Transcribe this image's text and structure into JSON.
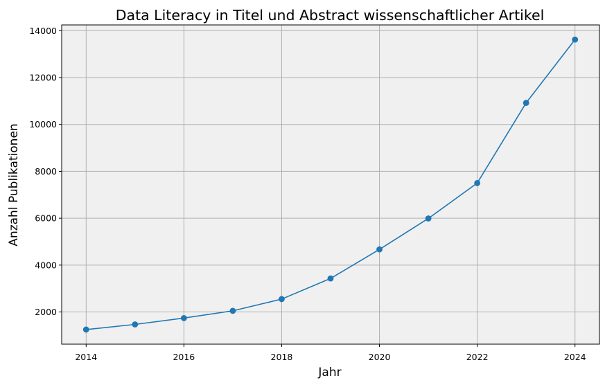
{
  "chart_data": {
    "type": "line",
    "title": "Data Literacy in Titel und Abstract wissenschaftlicher Artikel",
    "xlabel": "Jahr",
    "ylabel": "Anzahl Publikationen",
    "x": [
      2014,
      2015,
      2016,
      2017,
      2018,
      2019,
      2020,
      2021,
      2022,
      2023,
      2024
    ],
    "series": [
      {
        "values": [
          1250,
          1470,
          1740,
          2050,
          2550,
          3430,
          4670,
          5990,
          7500,
          10920,
          13620
        ],
        "color": "#1f77b4",
        "marker": "circle"
      }
    ],
    "xlim": [
      2013.5,
      2024.5
    ],
    "ylim": [
      628,
      14245
    ],
    "xticks": [
      2014,
      2016,
      2018,
      2020,
      2022,
      2024
    ],
    "yticks": [
      2000,
      4000,
      6000,
      8000,
      10000,
      12000,
      14000
    ],
    "xtick_labels": [
      "2014",
      "2016",
      "2018",
      "2020",
      "2022",
      "2024"
    ],
    "ytick_labels": [
      "2000",
      "4000",
      "6000",
      "8000",
      "10000",
      "12000",
      "14000"
    ],
    "grid": true,
    "legend": false,
    "plot_background": "#f0f0f0"
  }
}
